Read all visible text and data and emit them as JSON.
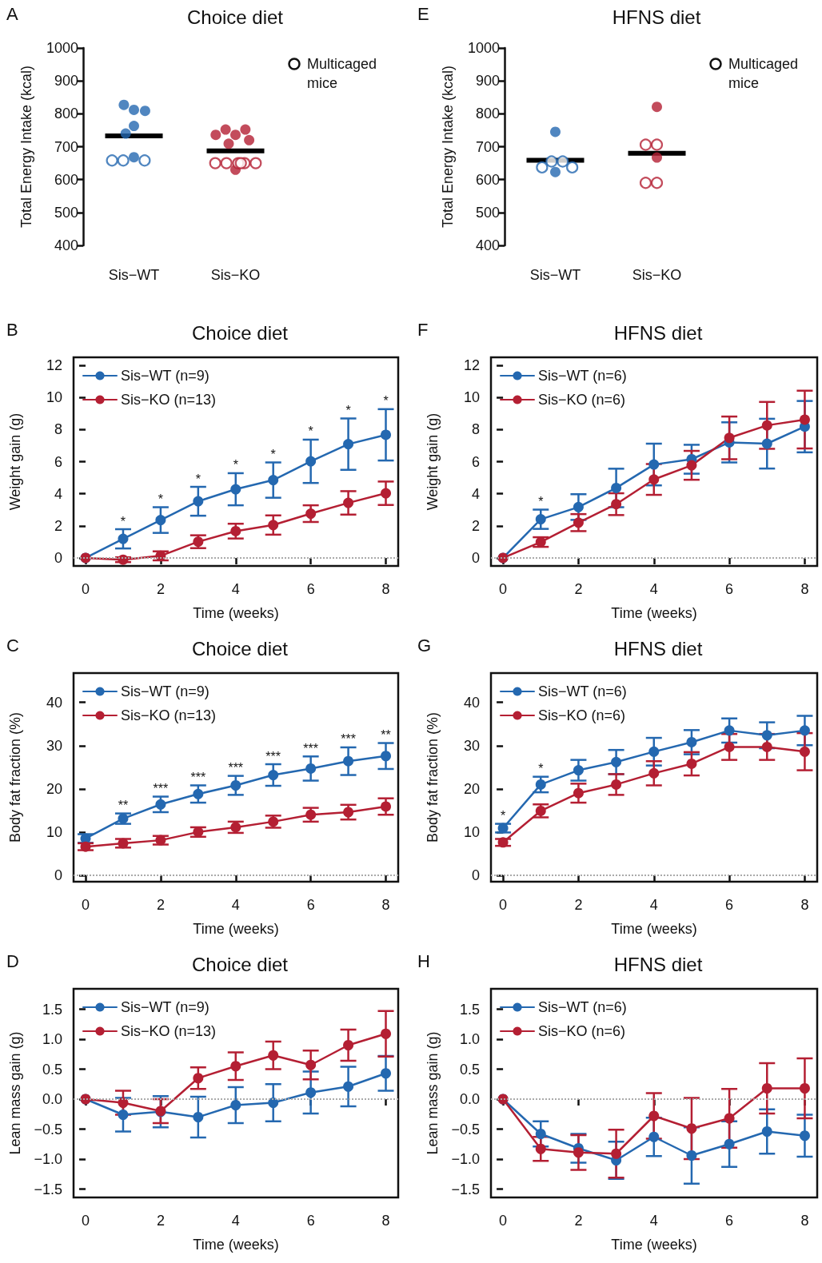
{
  "chart_data": [
    {
      "type": "scatter",
      "title": "Choice diet",
      "ylabel": "Total Energy Intake (kcal)",
      "annotations": [
        "A"
      ],
      "marker": "circle",
      "legend": "top right",
      "categories": [
        "Sis−WT",
        "Sis−KO"
      ],
      "ylim": [
        400,
        1000
      ],
      "yticks": [
        400,
        500,
        600,
        700,
        800,
        900,
        1000
      ],
      "series": [
        {
          "x": [
            "Sis−WT",
            "Sis−WT",
            "Sis−WT",
            "Sis−WT",
            "Sis−WT",
            "Sis−WT",
            "Sis−KO",
            "Sis−KO",
            "Sis−KO",
            "Sis−KO",
            "Sis−KO",
            "Sis−KO",
            "Sis−KO"
          ],
          "values": [
            812,
            827,
            809,
            763,
            740,
            668,
            736,
            752,
            752,
            736,
            709,
            720,
            630
          ],
          "colors": [
            "#2468b0",
            "#2468b0",
            "#2468b0",
            "#2468b0",
            "#2468b0",
            "#2468b0",
            "#b41f33",
            "#b41f33",
            "#b41f33",
            "#b41f33",
            "#b41f33",
            "#b41f33",
            "#b41f33"
          ]
        },
        {
          "name": "Multicaged mice",
          "color": "#ffffff",
          "x": [
            "Sis−WT",
            "Sis−WT",
            "Sis−WT",
            "Sis−KO",
            "Sis−KO",
            "Sis−KO",
            "Sis−KO",
            "Sis−KO",
            "Sis−KO"
          ],
          "values": [
            658,
            658,
            658,
            650,
            650,
            650,
            650,
            650,
            650
          ],
          "colors": [
            "#2468b0",
            "#2468b0",
            "#2468b0",
            "#b41f33",
            "#b41f33",
            "#b41f33",
            "#b41f33",
            "#b41f33",
            "#b41f33"
          ]
        },
        {
          "type": "box",
          "color": "#000000",
          "boxes": [
            {
              "low": 733,
              "q1": 733,
              "median": 733,
              "q3": 733,
              "high": 733
            },
            {
              "low": 687,
              "q1": 687,
              "median": 687,
              "q3": 687,
              "high": 687
            }
          ]
        }
      ]
    },
    {
      "type": "scatter",
      "title": "HFNS diet",
      "ylabel": "Total Energy Intake (kcal)",
      "annotations": [
        "E"
      ],
      "marker": "circle",
      "legend": "top right",
      "categories": [
        "Sis−WT",
        "Sis−KO"
      ],
      "ylim": [
        400,
        1000
      ],
      "yticks": [
        400,
        500,
        600,
        700,
        800,
        900,
        1000
      ],
      "series": [
        {
          "x": [
            "Sis−WT",
            "Sis−WT",
            "Sis−KO",
            "Sis−KO"
          ],
          "values": [
            745,
            623,
            821,
            667
          ],
          "colors": [
            "#2468b0",
            "#2468b0",
            "#b41f33",
            "#b41f33"
          ]
        },
        {
          "name": "Multicaged mice",
          "color": "#ffffff",
          "x": [
            "Sis−WT",
            "Sis−WT",
            "Sis−WT",
            "Sis−WT",
            "Sis−KO",
            "Sis−KO",
            "Sis−KO",
            "Sis−KO"
          ],
          "values": [
            655,
            655,
            637,
            637,
            590,
            590,
            706,
            706
          ],
          "colors": [
            "#2468b0",
            "#2468b0",
            "#2468b0",
            "#2468b0",
            "#b41f33",
            "#b41f33",
            "#b41f33",
            "#b41f33"
          ]
        },
        {
          "type": "box",
          "color": "#000000",
          "boxes": [
            {
              "low": 659,
              "q1": 659,
              "median": 659,
              "q3": 659,
              "high": 659
            },
            {
              "low": 680,
              "q1": 680,
              "median": 680,
              "q3": 680,
              "high": 680
            }
          ]
        }
      ]
    },
    {
      "type": "line",
      "title": "Choice diet",
      "xlabel": "Time (weeks)",
      "ylabel": "Weight gain (g)",
      "marker": "circle",
      "line_style": "solid",
      "legend": "top left",
      "x": [
        0,
        1,
        2,
        3,
        4,
        5,
        6,
        7,
        8
      ],
      "xlim": [
        -0.32,
        8.33
      ],
      "xticks": [
        0,
        2,
        4,
        6,
        8
      ],
      "ylim": [
        -0.5,
        12.5
      ],
      "yticks": [
        0,
        2,
        4,
        6,
        8,
        10,
        12
      ],
      "ref_lines": [
        {
          "axis": "y",
          "value": 0,
          "color": "#aaaaaa",
          "line_style": "dotted"
        }
      ],
      "annotations": [
        "B",
        {
          "text": "*",
          "x": 1,
          "y": 1.19
        },
        {
          "text": "*",
          "x": 2,
          "y": 2.36
        },
        {
          "text": "*",
          "x": 3,
          "y": 3.53
        },
        {
          "text": "*",
          "x": 4,
          "y": 4.28
        },
        {
          "text": "*",
          "x": 5,
          "y": 4.85
        },
        {
          "text": "*",
          "x": 6,
          "y": 6.02
        },
        {
          "text": "*",
          "x": 7,
          "y": 7.09
        },
        {
          "text": "*",
          "x": 8,
          "y": 7.67
        }
      ],
      "series": [
        {
          "name": "Sis−WT (n=9)",
          "color": "#2468b0",
          "values": [
            0,
            1.19,
            2.36,
            3.53,
            4.28,
            4.85,
            6.02,
            7.09,
            7.67
          ],
          "errors": [
            null,
            0.6,
            0.8,
            0.9,
            1.0,
            1.1,
            1.35,
            1.6,
            1.6
          ]
        },
        {
          "name": "Sis−KO (n=13)",
          "color": "#b41f33",
          "values": [
            0,
            -0.11,
            0.13,
            1.01,
            1.67,
            2.05,
            2.76,
            3.43,
            4.03
          ],
          "errors": [
            null,
            0.15,
            0.28,
            0.4,
            0.46,
            0.6,
            0.52,
            0.73,
            0.73
          ]
        }
      ]
    },
    {
      "type": "line",
      "title": "HFNS diet",
      "xlabel": "Time (weeks)",
      "ylabel": "Weight gain (g)",
      "marker": "circle",
      "line_style": "solid",
      "legend": "top left",
      "x": [
        0,
        1,
        2,
        3,
        4,
        5,
        6,
        7,
        8
      ],
      "xlim": [
        -0.32,
        8.33
      ],
      "xticks": [
        0,
        2,
        4,
        6,
        8
      ],
      "ylim": [
        -0.5,
        12.5
      ],
      "yticks": [
        0,
        2,
        4,
        6,
        8,
        10,
        12
      ],
      "ref_lines": [
        {
          "axis": "y",
          "value": 0,
          "color": "#aaaaaa",
          "line_style": "dotted"
        }
      ],
      "annotations": [
        "F",
        {
          "text": "*",
          "x": 1,
          "y": 2.41
        }
      ],
      "series": [
        {
          "name": "Sis−WT (n=6)",
          "color": "#2468b0",
          "values": [
            0,
            2.41,
            3.17,
            4.36,
            5.82,
            6.15,
            7.2,
            7.12,
            8.18
          ],
          "errors": [
            null,
            0.6,
            0.8,
            1.2,
            1.3,
            0.9,
            1.25,
            1.55,
            1.6
          ]
        },
        {
          "name": "Sis−KO (n=6)",
          "color": "#b41f33",
          "values": [
            0,
            0.99,
            2.2,
            3.35,
            4.89,
            5.77,
            7.48,
            8.26,
            8.62
          ],
          "errors": [
            null,
            0.3,
            0.53,
            0.68,
            0.96,
            0.9,
            1.33,
            1.46,
            1.8
          ]
        }
      ]
    },
    {
      "type": "line",
      "title": "Choice diet",
      "xlabel": "Time (weeks)",
      "ylabel": "Body fat fraction (%)",
      "marker": "circle",
      "line_style": "solid",
      "legend": "top left",
      "x": [
        0,
        1,
        2,
        3,
        4,
        5,
        6,
        7,
        8
      ],
      "xlim": [
        -0.32,
        8.33
      ],
      "xticks": [
        0,
        2,
        4,
        6,
        8
      ],
      "ylim": [
        -1.5,
        46.8
      ],
      "yticks": [
        0,
        10,
        20,
        30,
        40
      ],
      "ref_lines": [
        {
          "axis": "y",
          "value": 0,
          "color": "#aaaaaa",
          "line_style": "dotted"
        }
      ],
      "annotations": [
        "C",
        {
          "text": "**",
          "x": 1,
          "y": 13.1
        },
        {
          "text": "***",
          "x": 2,
          "y": 16.4
        },
        {
          "text": "***",
          "x": 3,
          "y": 18.8
        },
        {
          "text": "***",
          "x": 4,
          "y": 20.8
        },
        {
          "text": "***",
          "x": 5,
          "y": 23.2
        },
        {
          "text": "***",
          "x": 6,
          "y": 24.7
        },
        {
          "text": "***",
          "x": 7,
          "y": 26.4
        },
        {
          "text": "**",
          "x": 8,
          "y": 27.6
        }
      ],
      "series": [
        {
          "name": "Sis−WT (n=9)",
          "color": "#2468b0",
          "values": [
            8.5,
            13.1,
            16.4,
            18.8,
            20.8,
            23.2,
            24.7,
            26.4,
            27.6
          ],
          "errors": [
            1.0,
            1.2,
            1.8,
            2.0,
            2.2,
            2.5,
            2.8,
            3.2,
            3.0
          ]
        },
        {
          "name": "Sis−KO (n=13)",
          "color": "#b41f33",
          "values": [
            6.6,
            7.4,
            8.1,
            10.0,
            11.1,
            12.4,
            14.0,
            14.6,
            15.9
          ],
          "errors": [
            0.8,
            1.0,
            1.0,
            1.1,
            1.3,
            1.4,
            1.6,
            1.7,
            1.9
          ]
        }
      ]
    },
    {
      "type": "line",
      "title": "HFNS diet",
      "xlabel": "Time (weeks)",
      "ylabel": "Body fat fraction (%)",
      "marker": "circle",
      "line_style": "solid",
      "legend": "top left",
      "x": [
        0,
        1,
        2,
        3,
        4,
        5,
        6,
        7,
        8
      ],
      "xlim": [
        -0.32,
        8.33
      ],
      "xticks": [
        0,
        2,
        4,
        6,
        8
      ],
      "ylim": [
        -1.5,
        46.8
      ],
      "yticks": [
        0,
        10,
        20,
        30,
        40
      ],
      "ref_lines": [
        {
          "axis": "y",
          "value": 0,
          "color": "#aaaaaa",
          "line_style": "dotted"
        }
      ],
      "annotations": [
        "G",
        {
          "text": "*",
          "x": 0,
          "y": 10.9
        },
        {
          "text": "*",
          "x": 1,
          "y": 21.0
        }
      ],
      "series": [
        {
          "name": "Sis−WT (n=6)",
          "color": "#2468b0",
          "values": [
            10.9,
            21.0,
            24.3,
            26.2,
            28.6,
            30.8,
            33.5,
            32.4,
            33.5
          ],
          "errors": [
            1.0,
            1.8,
            2.4,
            2.8,
            3.2,
            2.8,
            2.8,
            3.0,
            3.4
          ]
        },
        {
          "name": "Sis−KO (n=6)",
          "color": "#b41f33",
          "values": [
            7.6,
            14.9,
            19.0,
            21.0,
            23.6,
            25.8,
            29.7,
            29.7,
            28.6
          ],
          "errors": [
            0.8,
            1.5,
            2.2,
            2.4,
            2.8,
            2.7,
            3.0,
            3.0,
            4.3
          ]
        }
      ]
    },
    {
      "type": "line",
      "title": "Choice diet",
      "xlabel": "Time (weeks)",
      "ylabel": "Lean mass gain (g)",
      "marker": "circle",
      "line_style": "solid",
      "legend": "top left",
      "x": [
        0,
        1,
        2,
        3,
        4,
        5,
        6,
        7,
        8
      ],
      "xlim": [
        -0.32,
        8.33
      ],
      "xticks": [
        0,
        2,
        4,
        6,
        8
      ],
      "ylim": [
        -1.64,
        1.84
      ],
      "yticks": [
        {
          "value": -1.5,
          "label": "−1.5"
        },
        {
          "value": -1,
          "label": "−1.0"
        },
        {
          "value": -0.5,
          "label": "−0.5"
        },
        {
          "value": 0,
          "label": "0.0"
        },
        0.5,
        {
          "value": 1,
          "label": "1.0"
        },
        1.5
      ],
      "ref_lines": [
        {
          "axis": "y",
          "value": 0,
          "color": "#aaaaaa",
          "line_style": "dotted"
        }
      ],
      "annotations": [
        "D"
      ],
      "series": [
        {
          "name": "Sis−WT (n=9)",
          "color": "#2468b0",
          "values": [
            0,
            -0.26,
            -0.21,
            -0.3,
            -0.1,
            -0.06,
            0.11,
            0.21,
            0.43
          ],
          "errors": [
            null,
            0.28,
            0.26,
            0.34,
            0.3,
            0.31,
            0.35,
            0.33,
            0.29
          ]
        },
        {
          "name": "Sis−KO (n=13)",
          "color": "#b41f33",
          "values": [
            0,
            -0.06,
            -0.2,
            0.35,
            0.55,
            0.73,
            0.57,
            0.9,
            1.09
          ],
          "errors": [
            null,
            0.2,
            0.2,
            0.18,
            0.23,
            0.23,
            0.24,
            0.26,
            0.38
          ]
        }
      ]
    },
    {
      "type": "line",
      "title": "HFNS diet",
      "xlabel": "Time (weeks)",
      "ylabel": "Lean mass gain (g)",
      "marker": "circle",
      "line_style": "solid",
      "legend": "top left",
      "x": [
        0,
        1,
        2,
        3,
        4,
        5,
        6,
        7,
        8
      ],
      "xlim": [
        -0.32,
        8.33
      ],
      "xticks": [
        0,
        2,
        4,
        6,
        8
      ],
      "ylim": [
        -1.64,
        1.84
      ],
      "yticks": [
        {
          "value": -1.5,
          "label": "−1.5"
        },
        {
          "value": -1,
          "label": "−1.0"
        },
        {
          "value": -0.5,
          "label": "−0.5"
        },
        {
          "value": 0,
          "label": "0.0"
        },
        0.5,
        {
          "value": 1,
          "label": "1.0"
        },
        1.5
      ],
      "ref_lines": [
        {
          "axis": "y",
          "value": 0,
          "color": "#aaaaaa",
          "line_style": "dotted"
        }
      ],
      "annotations": [
        "H"
      ],
      "series": [
        {
          "name": "Sis−WT (n=6)",
          "color": "#2468b0",
          "values": [
            0,
            -0.58,
            -0.82,
            -1.02,
            -0.63,
            -0.94,
            -0.75,
            -0.54,
            -0.61
          ],
          "errors": [
            null,
            0.21,
            0.24,
            0.31,
            0.32,
            0.47,
            0.38,
            0.37,
            0.35
          ]
        },
        {
          "name": "Sis−KO (n=6)",
          "color": "#b41f33",
          "values": [
            0,
            -0.83,
            -0.89,
            -0.91,
            -0.28,
            -0.49,
            -0.32,
            0.18,
            0.18
          ],
          "errors": [
            null,
            0.2,
            0.29,
            0.4,
            0.38,
            0.51,
            0.49,
            0.42,
            0.5
          ]
        }
      ]
    }
  ]
}
